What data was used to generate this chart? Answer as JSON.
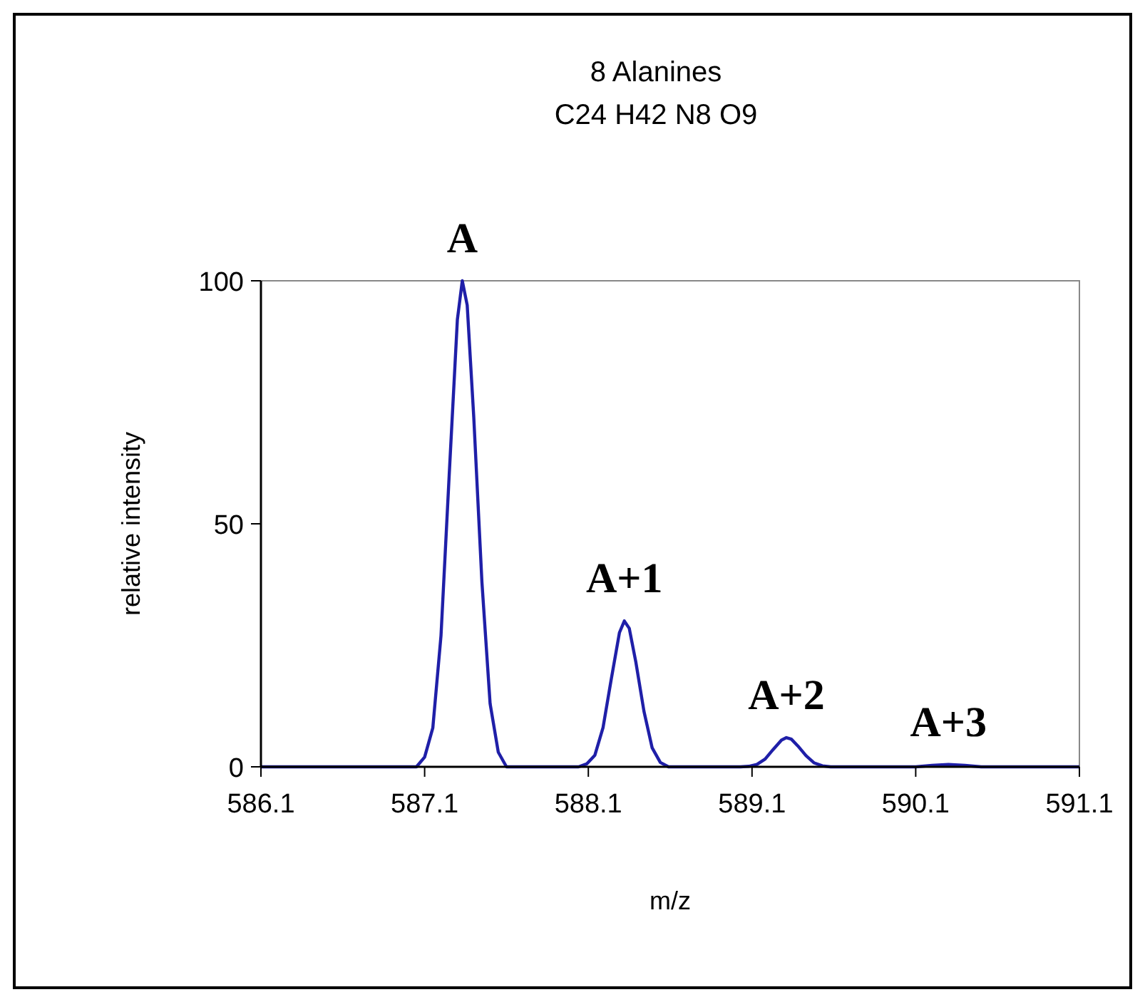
{
  "chart_data": {
    "type": "line",
    "title": "8 Alanines",
    "subtitle": "C24 H42 N8 O9",
    "xlabel": "m/z",
    "ylabel": "relative intensity",
    "x": [
      586.1,
      587.05,
      587.1,
      587.15,
      587.2,
      587.25,
      587.3,
      587.33,
      587.36,
      587.4,
      587.45,
      587.5,
      587.55,
      587.6,
      588.04,
      588.09,
      588.14,
      588.19,
      588.24,
      588.29,
      588.32,
      588.35,
      588.39,
      588.44,
      588.49,
      588.54,
      588.59,
      589.03,
      589.08,
      589.13,
      589.18,
      589.23,
      589.28,
      589.31,
      589.34,
      589.38,
      589.43,
      589.48,
      589.53,
      589.58,
      590.1,
      590.2,
      590.3,
      590.4,
      590.5,
      591.1
    ],
    "series": [
      {
        "color": "#1f1fa8",
        "values": [
          0,
          0,
          2,
          8,
          27,
          60,
          92,
          100,
          95,
          72,
          38,
          13,
          3,
          0,
          0,
          0.6,
          2.4,
          8.1,
          18,
          27.6,
          30,
          28.5,
          21.6,
          11.4,
          3.9,
          0.9,
          0,
          0,
          0.1,
          0.5,
          1.6,
          3.6,
          5.5,
          6,
          5.7,
          4.3,
          2.3,
          0.8,
          0.2,
          0,
          0,
          0.3,
          0.5,
          0.3,
          0,
          0
        ]
      }
    ],
    "xlim": [
      586.1,
      591.1
    ],
    "xticks": [
      586.1,
      587.1,
      588.1,
      589.1,
      590.1,
      591.1
    ],
    "ylim": [
      0,
      100
    ],
    "yticks": [
      0,
      50,
      100
    ],
    "grid": false,
    "marker": "none",
    "line_style": "solid",
    "annotations": [
      {
        "text": "A",
        "x": 587.33,
        "y": 100
      },
      {
        "text": "A+1",
        "x": 588.32,
        "y": 30
      },
      {
        "text": "A+2",
        "x": 589.31,
        "y": 6
      },
      {
        "text": "A+3",
        "x": 590.3,
        "y": 0.5
      }
    ]
  }
}
